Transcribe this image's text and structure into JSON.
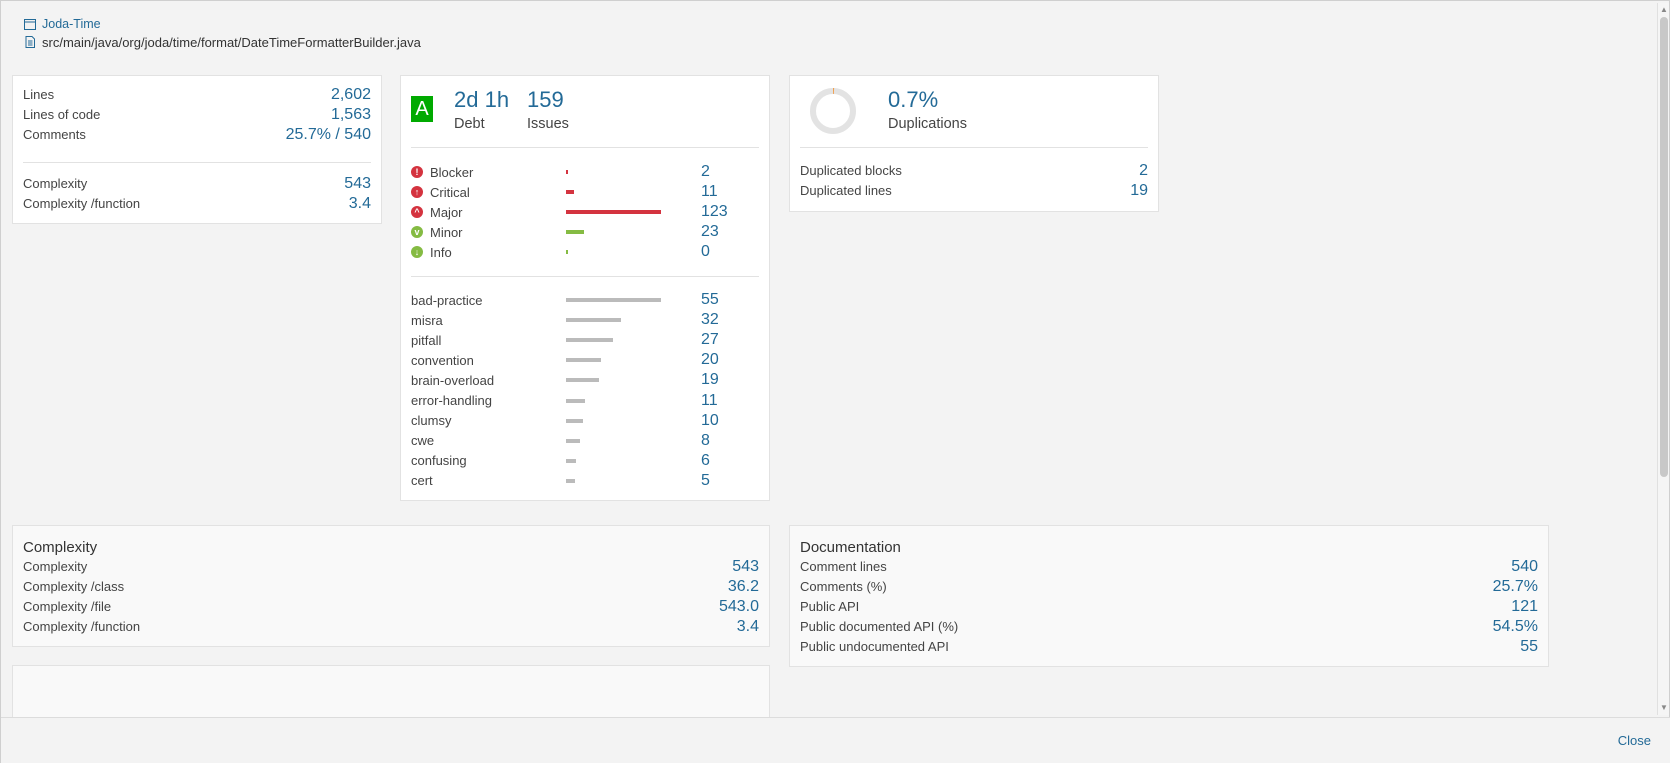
{
  "header": {
    "project": "Joda-Time",
    "file_path": "src/main/java/org/joda/time/format/DateTimeFormatterBuilder.java"
  },
  "size_card": {
    "rows": [
      {
        "label": "Lines",
        "value": "2,602"
      },
      {
        "label": "Lines of code",
        "value": "1,563"
      },
      {
        "label": "Comments",
        "value": "25.7% / 540"
      }
    ],
    "complexity_rows": [
      {
        "label": "Complexity",
        "value": "543"
      },
      {
        "label": "Complexity /function",
        "value": "3.4"
      }
    ]
  },
  "issues_card": {
    "rating": "A",
    "rating_color": "#00aa00",
    "debt_value": "2d 1h",
    "debt_label": "Debt",
    "issues_value": "159",
    "issues_label": "Issues",
    "severities": [
      {
        "label": "Blocker",
        "value": "2",
        "count": 2,
        "color": "#d4333f",
        "icon": "blocker-icon",
        "glyph": "!"
      },
      {
        "label": "Critical",
        "value": "11",
        "count": 11,
        "color": "#d4333f",
        "icon": "critical-icon",
        "glyph": "↑"
      },
      {
        "label": "Major",
        "value": "123",
        "count": 123,
        "color": "#d4333f",
        "icon": "major-icon",
        "glyph": "^"
      },
      {
        "label": "Minor",
        "value": "23",
        "count": 23,
        "color": "#85bb43",
        "icon": "minor-icon",
        "glyph": "v"
      },
      {
        "label": "Info",
        "value": "0",
        "count": 0,
        "color": "#85bb43",
        "icon": "info-icon",
        "glyph": "↓"
      }
    ],
    "tags": [
      {
        "label": "bad-practice",
        "value": "55",
        "count": 55
      },
      {
        "label": "misra",
        "value": "32",
        "count": 32
      },
      {
        "label": "pitfall",
        "value": "27",
        "count": 27
      },
      {
        "label": "convention",
        "value": "20",
        "count": 20
      },
      {
        "label": "brain-overload",
        "value": "19",
        "count": 19
      },
      {
        "label": "error-handling",
        "value": "11",
        "count": 11
      },
      {
        "label": "clumsy",
        "value": "10",
        "count": 10
      },
      {
        "label": "cwe",
        "value": "8",
        "count": 8
      },
      {
        "label": "confusing",
        "value": "6",
        "count": 6
      },
      {
        "label": "cert",
        "value": "5",
        "count": 5
      }
    ]
  },
  "dup_card": {
    "value": "0.7%",
    "label": "Duplications",
    "percent": 0.7,
    "rows": [
      {
        "label": "Duplicated blocks",
        "value": "2"
      },
      {
        "label": "Duplicated lines",
        "value": "19"
      }
    ]
  },
  "complexity_section": {
    "title": "Complexity",
    "rows": [
      {
        "label": "Complexity",
        "value": "543"
      },
      {
        "label": "Complexity /class",
        "value": "36.2"
      },
      {
        "label": "Complexity /file",
        "value": "543.0"
      },
      {
        "label": "Complexity /function",
        "value": "3.4"
      }
    ]
  },
  "documentation_section": {
    "title": "Documentation",
    "rows": [
      {
        "label": "Comment lines",
        "value": "540"
      },
      {
        "label": "Comments (%)",
        "value": "25.7%"
      },
      {
        "label": "Public API",
        "value": "121"
      },
      {
        "label": "Public documented API (%)",
        "value": "54.5%"
      },
      {
        "label": "Public undocumented API",
        "value": "55"
      }
    ]
  },
  "footer": {
    "close_label": "Close"
  },
  "colors": {
    "link": "#236a97",
    "tag_bar": "#bbbbbb"
  }
}
